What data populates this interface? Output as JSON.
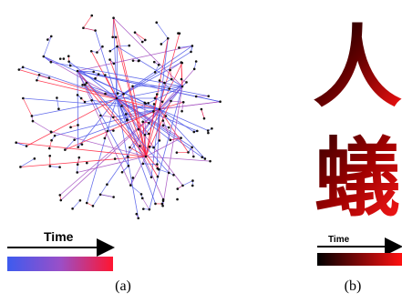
{
  "panel_a": {
    "time_label": "Time",
    "caption": "(a)",
    "colors": {
      "early": "#4a55e8",
      "mid": "#a24cc0",
      "late": "#ff1f3a",
      "node": "#111111"
    }
  },
  "panel_b": {
    "time_label": "Time",
    "caption": "(b)",
    "glyphs": [
      "人",
      "蟻"
    ],
    "colors": {
      "start": "#000000",
      "end": "#ff1010"
    }
  }
}
